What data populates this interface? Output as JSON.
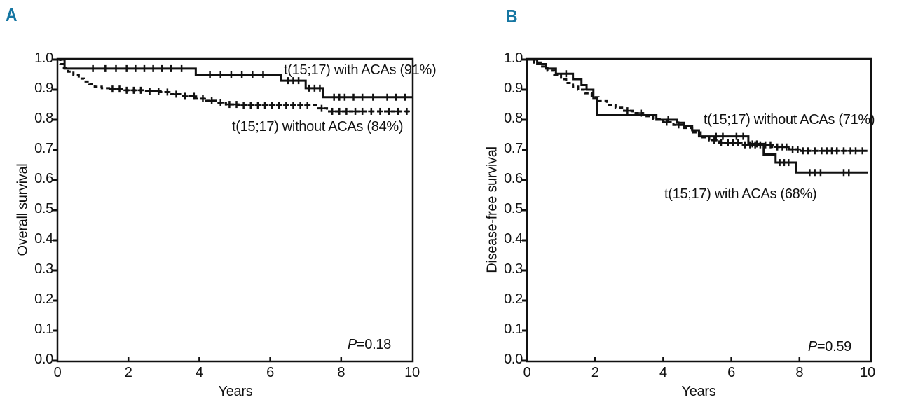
{
  "colors": {
    "ink": "#111111",
    "panel_letter": "#1576A2",
    "background": "#ffffff"
  },
  "chart_data": [
    {
      "type": "line",
      "subtype": "kaplan-meier-step",
      "panel_letter": "A",
      "title": "",
      "xlabel": "Years",
      "ylabel": "Overall survival",
      "p_value_italic": "P",
      "p_value_rest": "=0.18",
      "p_value_full": "P=0.18",
      "xlim": [
        0,
        10
      ],
      "ylim": [
        0.0,
        1.0
      ],
      "x_tick_labels": [
        "0",
        "2",
        "4",
        "6",
        "8",
        "10"
      ],
      "y_tick_labels": [
        "1.0",
        "0.9",
        "0.8",
        "0.7",
        "0.6",
        "0.5",
        "0.4",
        "0.3",
        "0.2",
        "0.1",
        "0.0"
      ],
      "grid": false,
      "legend_position": "inline-labels",
      "series": [
        {
          "name": "t(15;17) with ACAs",
          "label": "t(15;17) with ACAs (91%)",
          "line_style": "solid",
          "steps": [
            [
              0,
              1.0
            ],
            [
              0.2,
              0.97
            ],
            [
              3.9,
              0.95
            ],
            [
              6.3,
              0.93
            ],
            [
              7.0,
              0.905
            ],
            [
              7.5,
              0.875
            ],
            [
              10,
              0.875
            ]
          ],
          "censor_times": [
            1.0,
            1.35,
            1.65,
            1.95,
            2.2,
            2.45,
            2.7,
            2.95,
            3.2,
            3.5,
            4.3,
            4.6,
            4.9,
            5.2,
            5.5,
            5.8,
            6.5,
            6.65,
            6.8,
            7.1,
            7.25,
            7.4,
            7.8,
            7.95,
            8.1,
            8.35,
            8.6,
            8.9,
            9.3,
            9.55,
            9.8
          ]
        },
        {
          "name": "t(15;17) without ACAs",
          "label": "t(15;17) without ACAs (84%)",
          "line_style": "dashed",
          "steps": [
            [
              0,
              1.0
            ],
            [
              0.08,
              0.985
            ],
            [
              0.18,
              0.972
            ],
            [
              0.3,
              0.96
            ],
            [
              0.45,
              0.948
            ],
            [
              0.6,
              0.937
            ],
            [
              0.75,
              0.927
            ],
            [
              0.9,
              0.918
            ],
            [
              1.05,
              0.91
            ],
            [
              1.25,
              0.905
            ],
            [
              1.5,
              0.902
            ],
            [
              1.9,
              0.898
            ],
            [
              2.4,
              0.895
            ],
            [
              2.9,
              0.892
            ],
            [
              3.2,
              0.885
            ],
            [
              3.5,
              0.878
            ],
            [
              3.9,
              0.87
            ],
            [
              4.2,
              0.863
            ],
            [
              4.5,
              0.857
            ],
            [
              4.75,
              0.851
            ],
            [
              5.1,
              0.848
            ],
            [
              7.3,
              0.838
            ],
            [
              7.6,
              0.828
            ],
            [
              10,
              0.828
            ]
          ],
          "censor_times": [
            1.55,
            1.75,
            1.95,
            2.15,
            2.35,
            2.6,
            2.85,
            3.1,
            3.35,
            3.6,
            3.85,
            4.1,
            4.35,
            4.6,
            4.85,
            5.05,
            5.25,
            5.45,
            5.65,
            5.85,
            6.05,
            6.25,
            6.45,
            6.65,
            6.85,
            7.05,
            7.45,
            7.75,
            7.95,
            8.15,
            8.4,
            8.6,
            8.85,
            9.1,
            9.35,
            9.6,
            9.85
          ]
        }
      ]
    },
    {
      "type": "line",
      "subtype": "kaplan-meier-step",
      "panel_letter": "B",
      "title": "",
      "xlabel": "Years",
      "ylabel": "Disease-free survival",
      "p_value_italic": "P",
      "p_value_rest": "=0.59",
      "p_value_full": "P=0.59",
      "xlim": [
        0,
        10
      ],
      "ylim": [
        0.0,
        1.0
      ],
      "x_tick_labels": [
        "0",
        "2",
        "4",
        "6",
        "8",
        "10"
      ],
      "y_tick_labels": [
        "1.0",
        "0.9",
        "0.8",
        "0.7",
        "0.6",
        "0.5",
        "0.4",
        "0.3",
        "0.2",
        "0.1",
        "0.0"
      ],
      "grid": false,
      "legend_position": "inline-labels",
      "series": [
        {
          "name": "t(15;17) with ACAs",
          "label": "t(15;17) with ACAs (68%)",
          "line_style": "solid",
          "steps": [
            [
              0,
              1.0
            ],
            [
              0.3,
              0.985
            ],
            [
              0.55,
              0.97
            ],
            [
              0.85,
              0.953
            ],
            [
              1.35,
              0.935
            ],
            [
              1.6,
              0.915
            ],
            [
              1.75,
              0.9
            ],
            [
              1.95,
              0.87
            ],
            [
              2.05,
              0.815
            ],
            [
              3.8,
              0.8
            ],
            [
              4.4,
              0.79
            ],
            [
              4.6,
              0.778
            ],
            [
              4.85,
              0.765
            ],
            [
              5.05,
              0.745
            ],
            [
              6.5,
              0.72
            ],
            [
              6.95,
              0.685
            ],
            [
              7.3,
              0.658
            ],
            [
              7.9,
              0.625
            ],
            [
              10,
              0.625
            ]
          ],
          "censor_times": [
            1.15,
            4.15,
            5.55,
            5.75,
            6.15,
            6.35,
            6.62,
            6.75,
            7.42,
            7.55,
            7.68,
            8.3,
            8.45,
            8.62,
            9.3,
            9.45
          ]
        },
        {
          "name": "t(15;17) without ACAs",
          "label": "t(15;17) without ACAs (71%)",
          "line_style": "dashed",
          "steps": [
            [
              0,
              1.0
            ],
            [
              0.2,
              0.99
            ],
            [
              0.4,
              0.977
            ],
            [
              0.6,
              0.963
            ],
            [
              0.8,
              0.95
            ],
            [
              1.0,
              0.935
            ],
            [
              1.15,
              0.922
            ],
            [
              1.35,
              0.91
            ],
            [
              1.5,
              0.9
            ],
            [
              1.7,
              0.888
            ],
            [
              1.9,
              0.875
            ],
            [
              2.1,
              0.862
            ],
            [
              2.35,
              0.85
            ],
            [
              2.6,
              0.84
            ],
            [
              2.85,
              0.83
            ],
            [
              3.1,
              0.822
            ],
            [
              3.4,
              0.812
            ],
            [
              3.7,
              0.802
            ],
            [
              4.0,
              0.792
            ],
            [
              4.3,
              0.783
            ],
            [
              4.6,
              0.773
            ],
            [
              4.85,
              0.758
            ],
            [
              5.1,
              0.742
            ],
            [
              5.35,
              0.732
            ],
            [
              5.65,
              0.724
            ],
            [
              6.3,
              0.717
            ],
            [
              7.2,
              0.71
            ],
            [
              7.7,
              0.702
            ],
            [
              8.0,
              0.697
            ],
            [
              10,
              0.697
            ]
          ],
          "censor_times": [
            2.95,
            3.35,
            4.1,
            4.45,
            5.5,
            5.7,
            5.9,
            6.05,
            6.2,
            6.4,
            6.55,
            6.7,
            6.85,
            7.0,
            7.15,
            7.35,
            7.5,
            7.62,
            7.8,
            7.95,
            8.1,
            8.25,
            8.45,
            8.65,
            8.8,
            8.95,
            9.1,
            9.3,
            9.5,
            9.65,
            9.85
          ]
        }
      ]
    }
  ]
}
